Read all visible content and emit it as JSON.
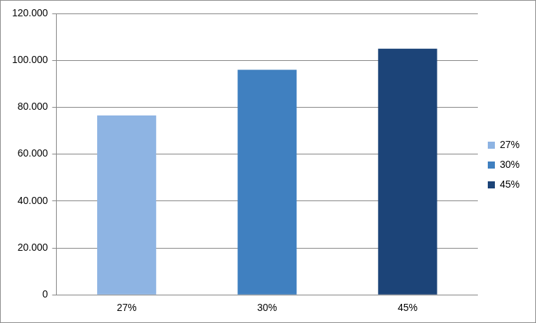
{
  "chart_data": {
    "type": "bar",
    "categories": [
      "27%",
      "30%",
      "45%"
    ],
    "values": [
      76500,
      96000,
      105000
    ],
    "colors": [
      "#8eb4e3",
      "#4080c0",
      "#1c4478"
    ],
    "ylim": [
      0,
      120000
    ],
    "yticks": [
      0,
      {
        "value": 20000,
        "label": "20.000"
      },
      {
        "value": 40000,
        "label": "40.000"
      },
      {
        "value": 60000,
        "label": "60.000"
      },
      {
        "value": 80000,
        "label": "80.000"
      },
      {
        "value": 100000,
        "label": "100.000"
      },
      {
        "value": 120000,
        "label": "120.000"
      }
    ],
    "grid": true,
    "legend": "right"
  }
}
